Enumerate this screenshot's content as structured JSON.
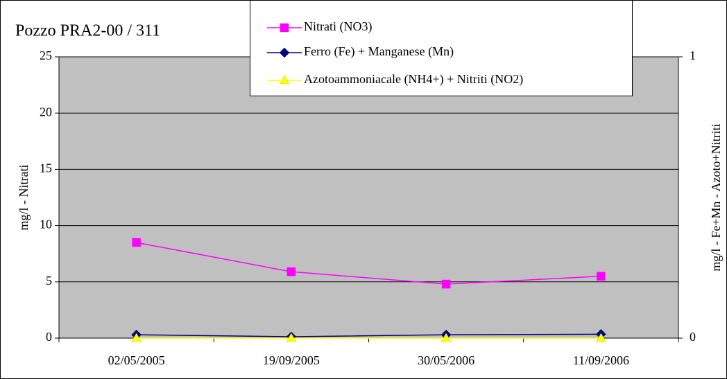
{
  "chart_data": {
    "type": "line",
    "title": "Pozzo PRA2-00 / 311",
    "y_label": "mg/l - Nitrati",
    "y2_label": "mg/l - Fe+Mn - Azoto+Nitriti",
    "categories": [
      "02/05/2005",
      "19/09/2005",
      "30/05/2006",
      "11/09/2006"
    ],
    "series": [
      {
        "name": "Nitrati (NO3)",
        "color": "#ff00ff",
        "marker": "square",
        "values": [
          8.5,
          5.9,
          4.8,
          5.5
        ]
      },
      {
        "name": "Ferro (Fe) + Manganese (Mn)",
        "color": "#000080",
        "marker": "diamond",
        "axis": "y2",
        "values": [
          0.012,
          0.005,
          0.012,
          0.014
        ]
      },
      {
        "name": "Azotoammoniacale (NH4+) + Nitriti (NO2)",
        "color": "#ffff00",
        "marker": "triangle",
        "axis": "y2",
        "values": [
          0,
          0,
          0,
          0
        ]
      }
    ],
    "ylim": [
      0,
      25
    ],
    "yticks": [
      0,
      5,
      10,
      15,
      20,
      25
    ],
    "y2lim": [
      0,
      1
    ],
    "y2ticks": [
      0,
      1
    ],
    "grid": true,
    "plot_background": "#c0c0c0",
    "legend": "top"
  }
}
